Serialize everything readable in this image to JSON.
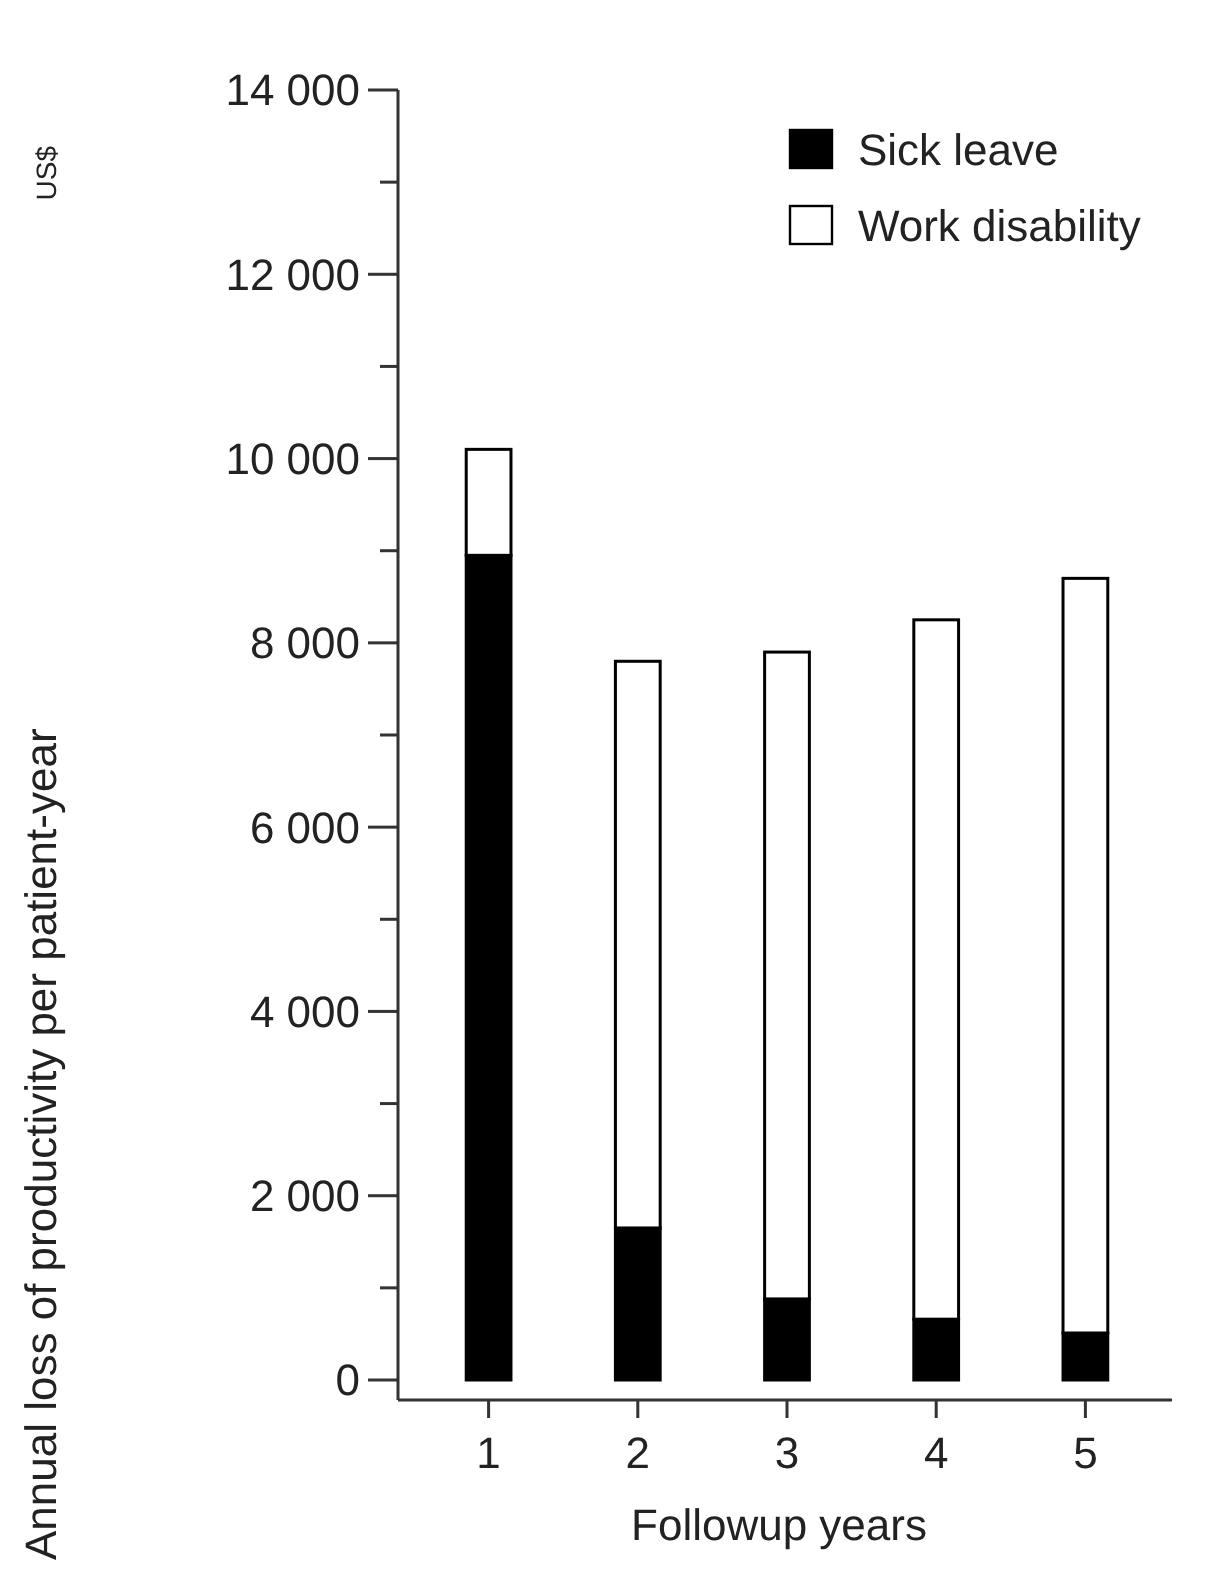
{
  "chart_data": {
    "type": "bar",
    "xlabel": "Followup years",
    "ylabel": "Annual loss of productivity per patient-year",
    "annotations": [
      "US$"
    ],
    "categories": [
      "1",
      "2",
      "3",
      "4",
      "5"
    ],
    "stacked": true,
    "legend": "top right",
    "grid": false,
    "ylim": [
      0,
      14000
    ],
    "yticks": [
      {
        "value": 0,
        "label": "0"
      },
      {
        "value": 2000,
        "label": "2 000"
      },
      {
        "value": 4000,
        "label": "4 000"
      },
      {
        "value": 6000,
        "label": "6 000"
      },
      {
        "value": 8000,
        "label": "8 000"
      },
      {
        "value": 10000,
        "label": "10 000"
      },
      {
        "value": 12000,
        "label": "12 000"
      },
      {
        "value": 14000,
        "label": "14 000"
      }
    ],
    "series": [
      {
        "name": "Sick leave",
        "color": "#000000",
        "values": [
          8950,
          1650,
          880,
          660,
          510
        ]
      },
      {
        "name": "Work disability",
        "color": "#ffffff",
        "values": [
          1150,
          6150,
          7020,
          7590,
          8190
        ]
      }
    ]
  }
}
